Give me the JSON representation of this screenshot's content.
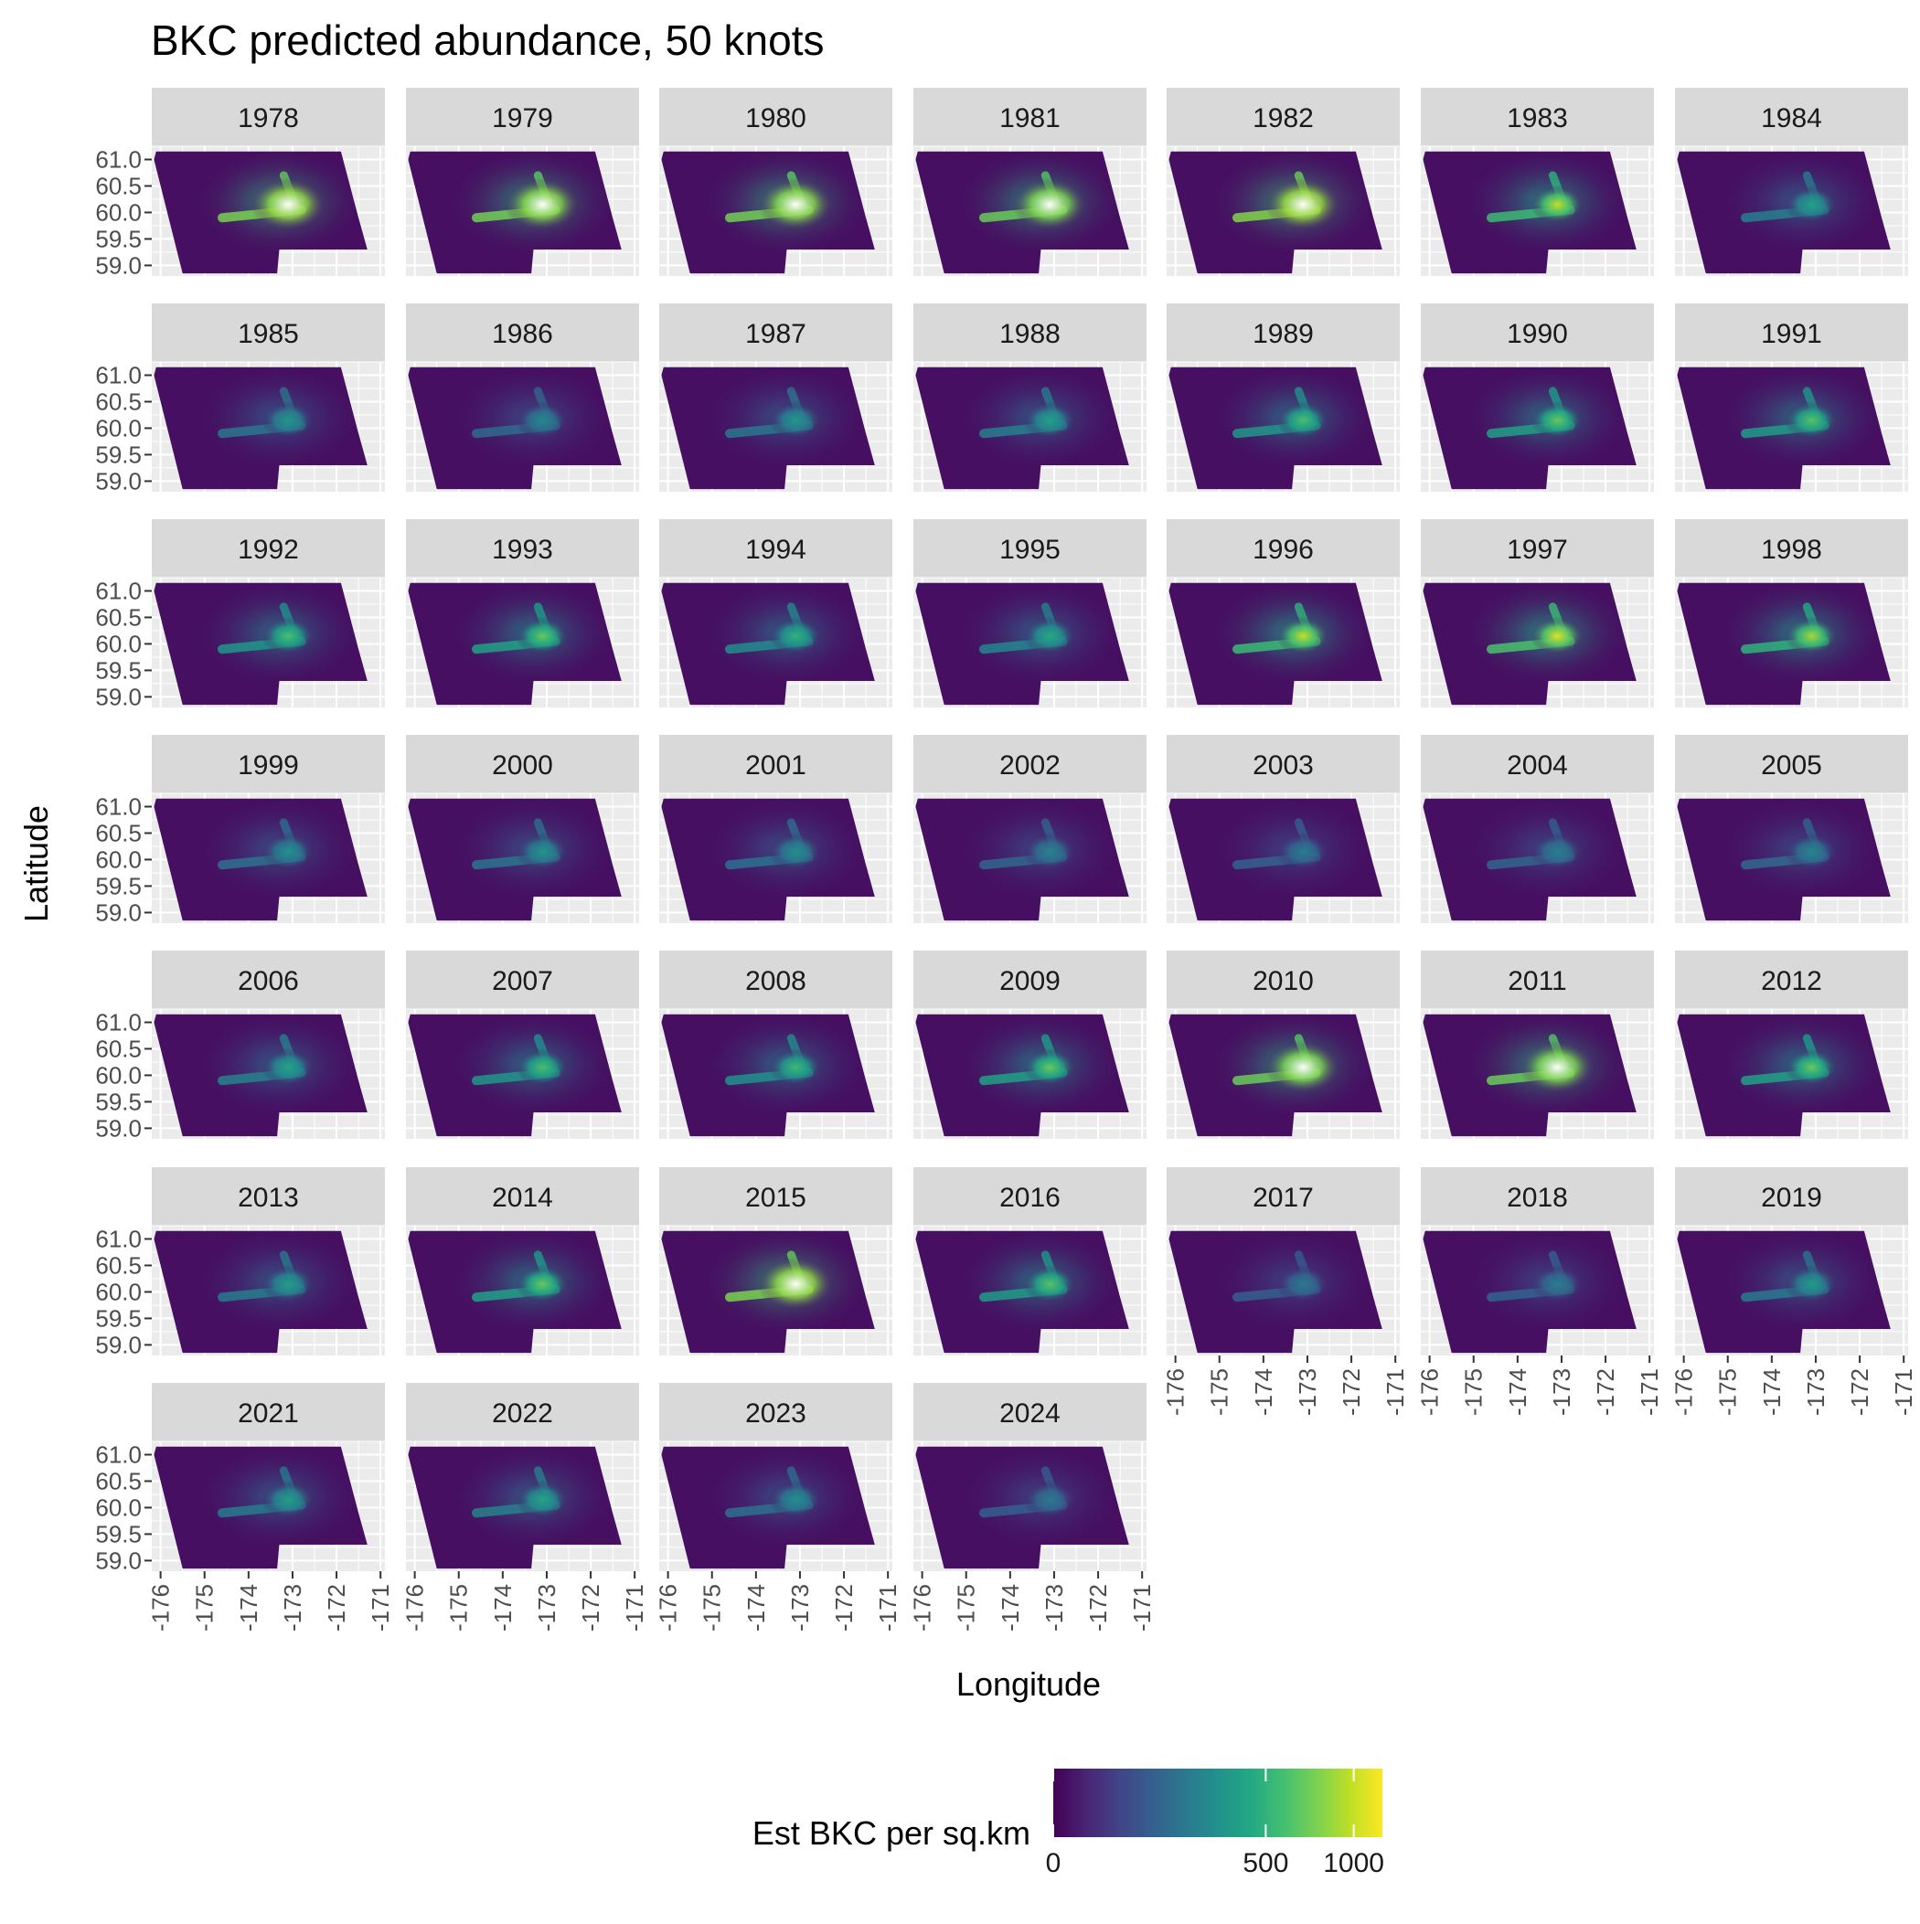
{
  "chart_data": {
    "type": "heatmap",
    "title": "BKC predicted abundance, 50 knots",
    "xlabel": "Longitude",
    "ylabel": "Latitude",
    "facet_variable": "year",
    "facets": [
      "1978",
      "1979",
      "1980",
      "1981",
      "1982",
      "1983",
      "1984",
      "1985",
      "1986",
      "1987",
      "1988",
      "1989",
      "1990",
      "1991",
      "1992",
      "1993",
      "1994",
      "1995",
      "1996",
      "1997",
      "1998",
      "1999",
      "2000",
      "2001",
      "2002",
      "2003",
      "2004",
      "2005",
      "2006",
      "2007",
      "2008",
      "2009",
      "2010",
      "2011",
      "2012",
      "2013",
      "2014",
      "2015",
      "2016",
      "2017",
      "2018",
      "2019",
      "2021",
      "2022",
      "2023",
      "2024"
    ],
    "x_ticks": [
      "-176",
      "-175",
      "-174",
      "-173",
      "-172",
      "-171"
    ],
    "x_tick_values": [
      -176,
      -175,
      -174,
      -173,
      -172,
      -171
    ],
    "y_ticks": [
      "61.0",
      "60.5",
      "60.0",
      "59.5",
      "59.0"
    ],
    "y_tick_values": [
      61.0,
      60.5,
      60.0,
      59.5,
      59.0
    ],
    "xlim": [
      -176.2,
      -170.9
    ],
    "ylim": [
      58.8,
      61.25
    ],
    "grid": true,
    "colorscale": "viridis",
    "color_range": [
      0,
      1200
    ],
    "legend": {
      "title": "Est BKC per sq.km",
      "placement": "bottom",
      "ticks": [
        "0",
        "500",
        "1000"
      ],
      "tick_values": [
        0,
        500,
        1000
      ],
      "scale": "sqrt"
    },
    "hotspot_peak_values": [
      1400,
      1350,
      1350,
      1300,
      1450,
      1000,
      400,
      340,
      260,
      340,
      400,
      600,
      700,
      650,
      600,
      700,
      500,
      450,
      1000,
      1100,
      900,
      300,
      320,
      300,
      240,
      210,
      230,
      250,
      420,
      600,
      550,
      700,
      1300,
      1300,
      700,
      380,
      700,
      1400,
      650,
      200,
      220,
      360,
      380,
      420,
      300,
      200
    ]
  },
  "colors": {
    "panel_background": "#ebebeb",
    "strip_background": "#d9d9d9",
    "grid_line": "#ffffff",
    "axis_text": "#4d4d4d",
    "text": "#000000"
  }
}
